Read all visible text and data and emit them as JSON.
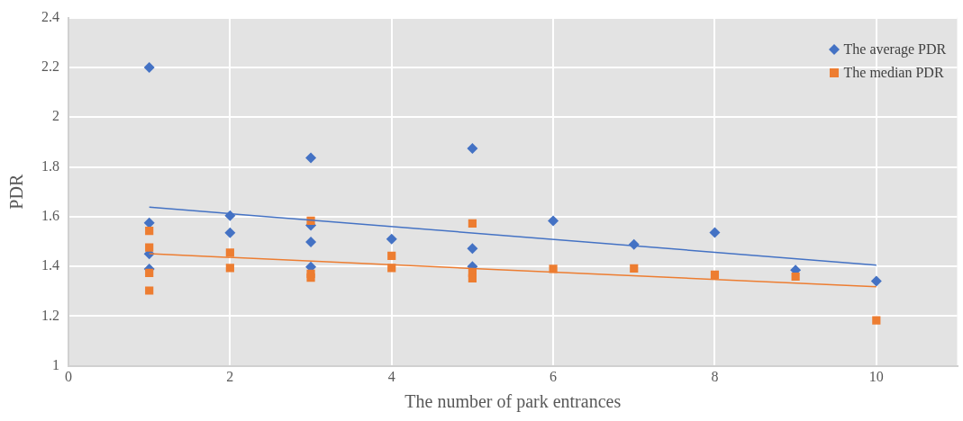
{
  "chart_data": {
    "type": "scatter",
    "xlabel": "The number of park entrances",
    "ylabel": "PDR",
    "xlim": [
      0,
      11
    ],
    "xticks": [
      0,
      2,
      4,
      6,
      8,
      10
    ],
    "ylim": [
      1,
      2.4
    ],
    "yticks": [
      1,
      1.2,
      1.4,
      1.6,
      1.8,
      2,
      2.2,
      2.4
    ],
    "grid": true,
    "legend": "top right",
    "series": [
      {
        "name": "The average PDR",
        "color": "#4472c4",
        "marker": "diamond",
        "x": [
          1,
          1,
          1,
          1,
          2,
          2,
          3,
          3,
          3,
          3,
          4,
          5,
          5,
          5,
          6,
          7,
          8,
          9,
          10
        ],
        "values": [
          2.2,
          1.575,
          1.45,
          1.39,
          1.604,
          1.535,
          1.836,
          1.565,
          1.498,
          1.398,
          1.51,
          1.874,
          1.472,
          1.4,
          1.583,
          1.488,
          1.536,
          1.385,
          1.341
        ]
      },
      {
        "name": "The median PDR",
        "color": "#ed7d31",
        "marker": "square",
        "x": [
          1,
          1,
          1,
          1,
          2,
          2,
          3,
          3,
          3,
          4,
          4,
          5,
          5,
          5,
          6,
          7,
          8,
          9,
          10
        ],
        "values": [
          1.543,
          1.476,
          1.374,
          1.303,
          1.455,
          1.394,
          1.584,
          1.37,
          1.355,
          1.443,
          1.394,
          1.573,
          1.374,
          1.352,
          1.39,
          1.392,
          1.367,
          1.359,
          1.183
        ]
      },
      {
        "type": "line",
        "color": "#4472c4",
        "marker": "none",
        "x": [
          1,
          10
        ],
        "values": [
          1.638,
          1.405
        ]
      },
      {
        "type": "line",
        "color": "#ed7d31",
        "marker": "none",
        "x": [
          1,
          10
        ],
        "values": [
          1.451,
          1.318
        ]
      }
    ]
  }
}
